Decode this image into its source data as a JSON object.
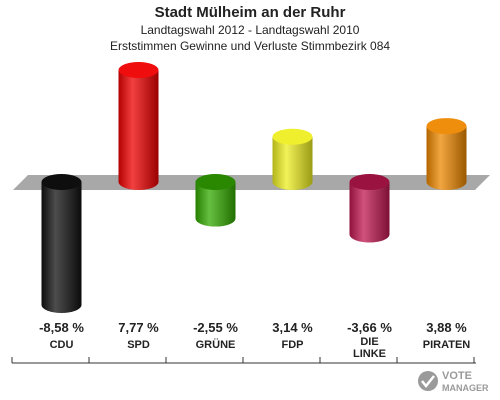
{
  "header": {
    "title": "Stadt Mülheim an der Ruhr",
    "subtitle": "Landtagswahl 2012 - Landtagswahl 2010",
    "description": "Erststimmen Gewinne und Verluste Stimmbezirk 084"
  },
  "logo": {
    "text_top": "VOTE",
    "text_bottom": "MANAGER"
  },
  "chart_data": {
    "type": "bar",
    "categories": [
      "CDU",
      "SPD",
      "GRÜNE",
      "FDP",
      "DIE LINKE",
      "PIRATEN"
    ],
    "values": [
      -8.58,
      7.77,
      -2.55,
      3.14,
      -3.66,
      3.88
    ],
    "labels": [
      "-8,58 %",
      "7,77 %",
      "-2,55 %",
      "3,14 %",
      "-3,66 %",
      "3,88 %"
    ],
    "colors": [
      "#111111",
      "#ee0000",
      "#33aa00",
      "#eeee22",
      "#c01850",
      "#ee8800"
    ],
    "ylim": [
      -8.58,
      7.77
    ],
    "grid": false
  }
}
